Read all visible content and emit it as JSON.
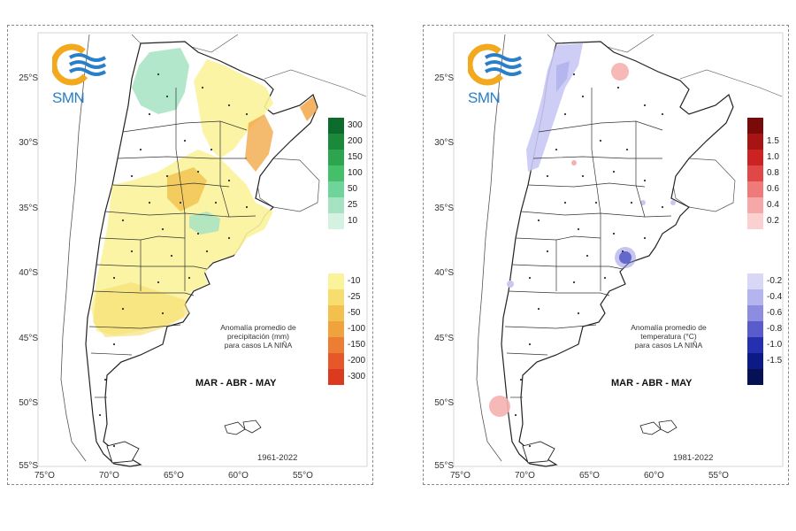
{
  "logo": {
    "text": "SMN"
  },
  "axes": {
    "lat_labels": [
      "25°S",
      "30°S",
      "35°S",
      "40°S",
      "45°S",
      "50°S",
      "55°S"
    ],
    "lon_labels": [
      "75°O",
      "70°O",
      "65°O",
      "60°O",
      "55°O"
    ]
  },
  "left_map": {
    "title_lines": [
      "Anomalía promedio de",
      "precipitación (mm)",
      "para casos LA NIÑA"
    ],
    "season": "MAR - ABR - MAY",
    "period": "1961-2022",
    "legend_positive": [
      {
        "label": "300",
        "color": "#0e6b2e"
      },
      {
        "label": "200",
        "color": "#1a8a3a"
      },
      {
        "label": "150",
        "color": "#2da44e"
      },
      {
        "label": "100",
        "color": "#44c06a"
      },
      {
        "label": "50",
        "color": "#6ed49a"
      },
      {
        "label": "25",
        "color": "#a6e3c3"
      },
      {
        "label": "10",
        "color": "#d4f1e1"
      }
    ],
    "legend_negative": [
      {
        "label": "-10",
        "color": "#fbf39a"
      },
      {
        "label": "-25",
        "color": "#f7dc6e"
      },
      {
        "label": "-50",
        "color": "#f3c04e"
      },
      {
        "label": "-100",
        "color": "#f0a33c"
      },
      {
        "label": "-150",
        "color": "#ec7e33"
      },
      {
        "label": "-200",
        "color": "#e6572a"
      },
      {
        "label": "-300",
        "color": "#dc3a1e"
      }
    ]
  },
  "right_map": {
    "title_lines": [
      "Anomalía promedio de",
      "temperatura (°C)",
      "para casos LA NIÑA"
    ],
    "season": "MAR - ABR - MAY",
    "period": "1981-2022",
    "legend_positive": [
      {
        "label": "",
        "color": "#7a0a0a"
      },
      {
        "label": "1.5",
        "color": "#a81414"
      },
      {
        "label": "1.0",
        "color": "#cc2222"
      },
      {
        "label": "0.8",
        "color": "#e04848"
      },
      {
        "label": "0.6",
        "color": "#ee7a7a"
      },
      {
        "label": "0.4",
        "color": "#f6a8a8"
      },
      {
        "label": "0.2",
        "color": "#fbd0d0"
      }
    ],
    "legend_negative": [
      {
        "label": "-0.2",
        "color": "#d8d8f6"
      },
      {
        "label": "-0.4",
        "color": "#b4b4ee"
      },
      {
        "label": "-0.6",
        "color": "#8c8ce0"
      },
      {
        "label": "-0.8",
        "color": "#5a5ccc"
      },
      {
        "label": "-1.0",
        "color": "#2430b0"
      },
      {
        "label": "-1.5",
        "color": "#0c1a86"
      },
      {
        "label": "",
        "color": "#061054"
      }
    ]
  },
  "colors": {
    "drought_light": "#fbf39a",
    "drought_mid": "#f3c04e",
    "wet_light": "#a6e3c3",
    "cold_light": "#c8c8f4",
    "warm_light": "#f6b0b0"
  }
}
